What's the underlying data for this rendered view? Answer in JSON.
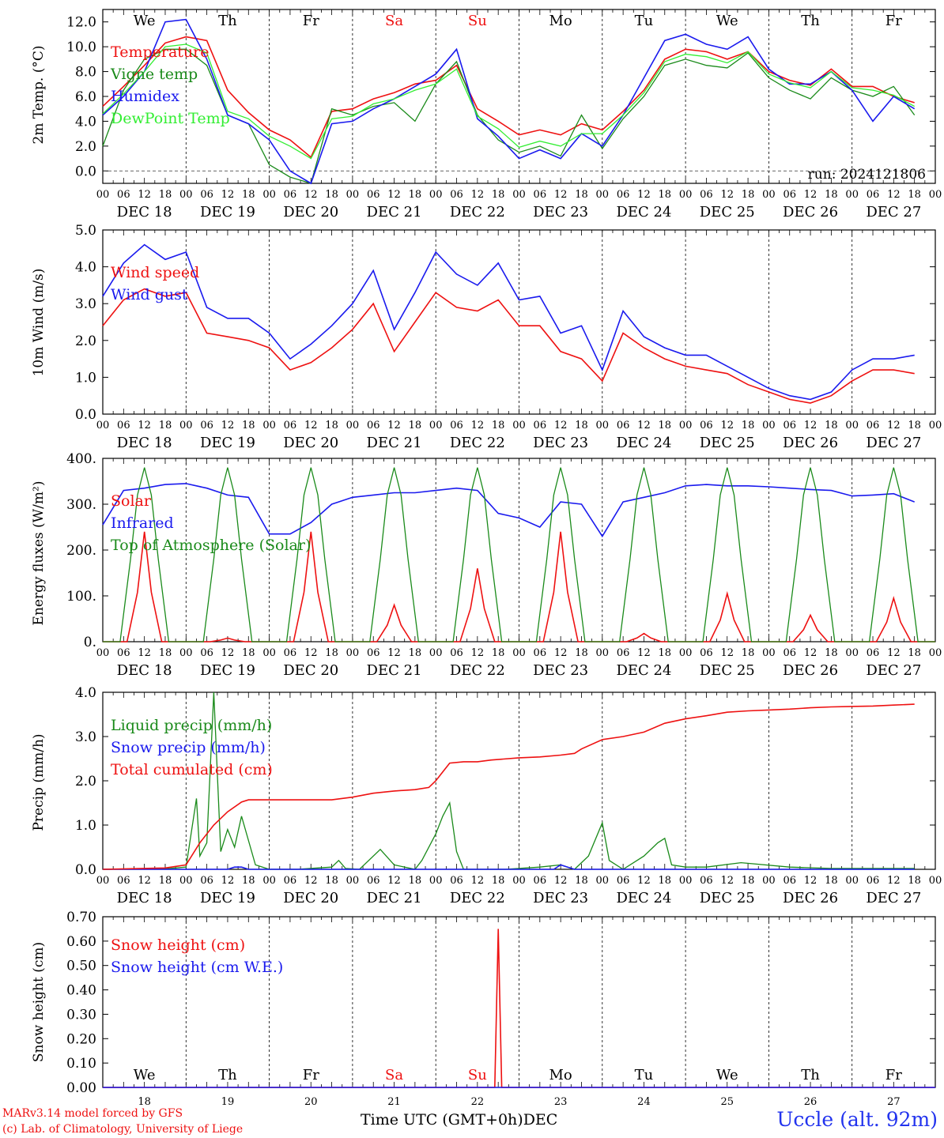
{
  "colors": {
    "red": "#ee1111",
    "green": "#1a8a1a",
    "lightgreen": "#33ee33",
    "blue": "#1a1aee",
    "weekend": "#ee1111",
    "axis": "#000000"
  },
  "days": {
    "weekday_labels": [
      "We",
      "Th",
      "Fr",
      "Sa",
      "Su",
      "Mo",
      "Tu",
      "We",
      "Th",
      "Fr"
    ],
    "weekend_flags": [
      false,
      false,
      false,
      true,
      true,
      false,
      false,
      false,
      false,
      false
    ],
    "date_labels": [
      "DEC 18",
      "DEC 19",
      "DEC 20",
      "DEC 21",
      "DEC 22",
      "DEC 23",
      "DEC 24",
      "DEC 25",
      "DEC 26",
      "DEC 27"
    ],
    "day_numbers": [
      "18",
      "19",
      "20",
      "21",
      "22",
      "23",
      "24",
      "25",
      "26",
      "27"
    ],
    "hour_ticks": [
      "00",
      "06",
      "12",
      "18"
    ],
    "final_hour_tick": "00"
  },
  "footer": {
    "model_line": "MARv3.14 model forced by GFS",
    "copyright_line": "(c) Lab. of Climatology, University of Liege",
    "x_axis_title": "Time UTC (GMT+0h)",
    "x_axis_month": "DEC",
    "station": "Uccle (alt. 92m)"
  },
  "chart_data": [
    {
      "id": "temperature",
      "type": "line",
      "ylabel": "2m Temp. (°C)",
      "ylim": [
        -1,
        13
      ],
      "yticks": [
        "12.0",
        "10.0",
        "8.0",
        "6.0",
        "4.0",
        "2.0",
        "0.0"
      ],
      "ytick_values": [
        12,
        10,
        8,
        6,
        4,
        2,
        0
      ],
      "zero_line": true,
      "annotation": "run: 2024121806",
      "x_unit": "hours since Dec 18 00 UTC",
      "series": [
        {
          "name": "Temperature",
          "color": "red",
          "x": [
            0,
            6,
            12,
            18,
            24,
            30,
            36,
            42,
            48,
            54,
            60,
            66,
            72,
            78,
            84,
            90,
            96,
            102,
            108,
            114,
            120,
            126,
            132,
            138,
            144,
            150,
            156,
            162,
            168,
            174,
            180,
            186,
            192,
            198,
            204,
            210,
            216,
            222,
            228,
            234
          ],
          "y": [
            5.2,
            6.8,
            8.5,
            10.3,
            10.8,
            10.5,
            6.5,
            4.7,
            3.3,
            2.5,
            1.1,
            4.8,
            5.0,
            5.8,
            6.3,
            7.0,
            7.3,
            8.5,
            5.0,
            4.0,
            2.9,
            3.3,
            2.9,
            3.8,
            3.3,
            4.8,
            6.5,
            9.0,
            9.8,
            9.6,
            9.0,
            9.6,
            8.0,
            7.3,
            6.9,
            8.2,
            6.8,
            6.8,
            6.0,
            5.5
          ]
        },
        {
          "name": "Vigne temp",
          "color": "green",
          "x": [
            0,
            6,
            12,
            18,
            24,
            30,
            36,
            42,
            48,
            54,
            60,
            66,
            72,
            78,
            84,
            90,
            96,
            102,
            108,
            114,
            120,
            126,
            132,
            138,
            144,
            150,
            156,
            162,
            168,
            174,
            180,
            186,
            192,
            198,
            204,
            210,
            216,
            222,
            228,
            234
          ],
          "y": [
            2.0,
            6.5,
            9.0,
            9.8,
            9.8,
            8.5,
            4.5,
            3.8,
            0.5,
            -0.5,
            -1.0,
            5.0,
            4.5,
            5.2,
            5.5,
            4.0,
            7.0,
            8.8,
            4.5,
            2.5,
            1.5,
            2.0,
            1.2,
            4.5,
            1.8,
            4.2,
            6.0,
            8.5,
            9.0,
            8.5,
            8.3,
            9.5,
            7.5,
            6.5,
            5.8,
            7.5,
            6.5,
            6.0,
            6.8,
            4.5
          ]
        },
        {
          "name": "Humidex",
          "color": "blue",
          "x": [
            0,
            6,
            12,
            18,
            24,
            30,
            36,
            42,
            48,
            54,
            60,
            66,
            72,
            78,
            84,
            90,
            96,
            102,
            108,
            114,
            120,
            126,
            132,
            138,
            144,
            150,
            156,
            162,
            168,
            174,
            180,
            186,
            192,
            198,
            204,
            210,
            216,
            222,
            228,
            234
          ],
          "y": [
            4.5,
            6.0,
            8.0,
            12.0,
            12.2,
            9.0,
            4.5,
            3.8,
            2.5,
            0.0,
            -1.0,
            3.8,
            4.0,
            5.0,
            5.8,
            6.8,
            7.8,
            9.8,
            4.2,
            2.8,
            1.0,
            1.7,
            1.0,
            3.0,
            2.0,
            4.5,
            7.5,
            10.5,
            11.0,
            10.2,
            9.8,
            10.8,
            8.2,
            7.0,
            7.0,
            8.0,
            6.5,
            4.0,
            6.0,
            5.0
          ]
        },
        {
          "name": "DewPoint Temp",
          "color": "lightgreen",
          "x": [
            0,
            6,
            12,
            18,
            24,
            30,
            36,
            42,
            48,
            54,
            60,
            66,
            72,
            78,
            84,
            90,
            96,
            102,
            108,
            114,
            120,
            126,
            132,
            138,
            144,
            150,
            156,
            162,
            168,
            174,
            180,
            186,
            192,
            198,
            204,
            210,
            216,
            222,
            228,
            234
          ],
          "y": [
            4.6,
            6.2,
            8.0,
            10.0,
            10.2,
            9.5,
            4.8,
            4.2,
            2.8,
            2.0,
            1.0,
            4.2,
            4.4,
            5.4,
            5.8,
            6.5,
            7.0,
            8.2,
            4.4,
            3.4,
            1.9,
            2.4,
            2.0,
            3.0,
            3.0,
            4.5,
            6.3,
            8.8,
            9.4,
            9.2,
            8.7,
            9.6,
            7.8,
            7.1,
            6.7,
            8.0,
            6.7,
            6.5,
            6.1,
            5.2
          ]
        }
      ]
    },
    {
      "id": "wind",
      "type": "line",
      "ylabel": "10m Wind (m/s)",
      "ylim": [
        0,
        5
      ],
      "yticks": [
        "5.0",
        "4.0",
        "3.0",
        "2.0",
        "1.0",
        "0.0"
      ],
      "ytick_values": [
        5,
        4,
        3,
        2,
        1,
        0
      ],
      "series": [
        {
          "name": "Wind speed",
          "color": "red",
          "x": [
            0,
            6,
            12,
            18,
            24,
            30,
            36,
            42,
            48,
            54,
            60,
            66,
            72,
            78,
            84,
            90,
            96,
            102,
            108,
            114,
            120,
            126,
            132,
            138,
            144,
            150,
            156,
            162,
            168,
            174,
            180,
            186,
            192,
            198,
            204,
            210,
            216,
            222,
            228,
            234
          ],
          "y": [
            2.4,
            3.1,
            3.4,
            3.2,
            3.3,
            2.2,
            2.1,
            2.0,
            1.8,
            1.2,
            1.4,
            1.8,
            2.3,
            3.0,
            1.7,
            2.5,
            3.3,
            2.9,
            2.8,
            3.1,
            2.4,
            2.4,
            1.7,
            1.5,
            0.9,
            2.2,
            1.8,
            1.5,
            1.3,
            1.2,
            1.1,
            0.8,
            0.6,
            0.4,
            0.3,
            0.5,
            0.9,
            1.2,
            1.2,
            1.1
          ]
        },
        {
          "name": "Wind gust",
          "color": "blue",
          "x": [
            0,
            6,
            12,
            18,
            24,
            30,
            36,
            42,
            48,
            54,
            60,
            66,
            72,
            78,
            84,
            90,
            96,
            102,
            108,
            114,
            120,
            126,
            132,
            138,
            144,
            150,
            156,
            162,
            168,
            174,
            180,
            186,
            192,
            198,
            204,
            210,
            216,
            222,
            228,
            234
          ],
          "y": [
            3.2,
            4.1,
            4.6,
            4.2,
            4.4,
            2.9,
            2.6,
            2.6,
            2.2,
            1.5,
            1.9,
            2.4,
            3.0,
            3.9,
            2.3,
            3.3,
            4.4,
            3.8,
            3.5,
            4.1,
            3.1,
            3.2,
            2.2,
            2.4,
            1.2,
            2.8,
            2.1,
            1.8,
            1.6,
            1.6,
            1.3,
            1.0,
            0.7,
            0.5,
            0.4,
            0.6,
            1.2,
            1.5,
            1.5,
            1.6
          ]
        }
      ]
    },
    {
      "id": "energy",
      "type": "line",
      "ylabel": "Energy fluxes (W/m²)",
      "ylim": [
        0,
        400
      ],
      "yticks": [
        "400.",
        "300.",
        "200.",
        "100.",
        "0."
      ],
      "ytick_values": [
        400,
        300,
        200,
        100,
        0
      ],
      "series": [
        {
          "name": "Solar",
          "color": "red",
          "kind": "daily_peaks",
          "peaks": [
            240,
            8,
            240,
            80,
            160,
            240,
            18,
            105,
            58,
            95
          ]
        },
        {
          "name": "Infrared",
          "color": "blue",
          "x": [
            0,
            6,
            12,
            18,
            24,
            30,
            36,
            42,
            48,
            54,
            60,
            66,
            72,
            78,
            84,
            90,
            96,
            102,
            108,
            114,
            120,
            126,
            132,
            138,
            144,
            150,
            156,
            162,
            168,
            174,
            180,
            186,
            192,
            198,
            204,
            210,
            216,
            222,
            228,
            234
          ],
          "y": [
            255,
            330,
            335,
            343,
            345,
            335,
            320,
            315,
            235,
            235,
            260,
            300,
            315,
            320,
            325,
            325,
            330,
            335,
            330,
            280,
            270,
            250,
            305,
            300,
            230,
            305,
            315,
            325,
            340,
            343,
            340,
            340,
            338,
            335,
            332,
            330,
            318,
            320,
            323,
            305
          ]
        },
        {
          "name": "Top of Atmosphere (Solar)",
          "color": "green",
          "kind": "daily_peaks",
          "peaks": [
            380,
            380,
            380,
            380,
            380,
            380,
            380,
            380,
            380,
            380
          ]
        }
      ]
    },
    {
      "id": "precip",
      "type": "line",
      "ylabel": "Precip (mm/h)",
      "ylim": [
        0,
        4
      ],
      "yticks": [
        "4.0",
        "3.0",
        "2.0",
        "1.0",
        "0.0"
      ],
      "ytick_values": [
        4,
        3,
        2,
        1,
        0
      ],
      "series": [
        {
          "name": "Liquid precip (mm/h)",
          "color": "green",
          "x": [
            0,
            18,
            24,
            27,
            28,
            30,
            32,
            34,
            36,
            38,
            40,
            44,
            48,
            56,
            66,
            68,
            70,
            74,
            80,
            84,
            90,
            92,
            96,
            98,
            100,
            102,
            104,
            110,
            116,
            126,
            132,
            136,
            140,
            144,
            146,
            150,
            156,
            160,
            162,
            164,
            168,
            174,
            184,
            198,
            210,
            220,
            234
          ],
          "y": [
            0,
            0.01,
            0.05,
            1.6,
            0.3,
            0.6,
            4.0,
            0.4,
            0.9,
            0.5,
            1.2,
            0.1,
            0,
            0,
            0.05,
            0.2,
            0.02,
            0,
            0.45,
            0.1,
            0,
            0.2,
            0.8,
            1.2,
            1.5,
            0.4,
            0,
            0,
            0,
            0.05,
            0.1,
            0,
            0.3,
            1.05,
            0.2,
            0,
            0.3,
            0.6,
            0.7,
            0.1,
            0.05,
            0.05,
            0.15,
            0.05,
            0.02,
            0.02,
            0.02
          ]
        },
        {
          "name": "Snow precip (mm/h)",
          "color": "blue",
          "x": [
            0,
            36,
            38,
            40,
            42,
            130,
            132,
            134,
            136,
            234
          ],
          "y": [
            0,
            0,
            0.05,
            0.05,
            0,
            0,
            0.1,
            0.05,
            0,
            0
          ]
        },
        {
          "name": "Total cumulated (cm)",
          "color": "red",
          "x": [
            0,
            18,
            24,
            28,
            32,
            36,
            40,
            42,
            48,
            54,
            60,
            66,
            72,
            78,
            84,
            90,
            94,
            96,
            98,
            100,
            104,
            108,
            112,
            120,
            126,
            132,
            136,
            138,
            144,
            150,
            156,
            162,
            168,
            174,
            180,
            186,
            192,
            198,
            204,
            210,
            216,
            222,
            228,
            234
          ],
          "y": [
            0,
            0.03,
            0.1,
            0.6,
            1.0,
            1.3,
            1.52,
            1.57,
            1.57,
            1.57,
            1.57,
            1.57,
            1.63,
            1.72,
            1.77,
            1.8,
            1.85,
            2.0,
            2.2,
            2.4,
            2.43,
            2.43,
            2.47,
            2.52,
            2.54,
            2.58,
            2.62,
            2.72,
            2.93,
            3.0,
            3.1,
            3.3,
            3.4,
            3.47,
            3.55,
            3.58,
            3.6,
            3.62,
            3.65,
            3.67,
            3.68,
            3.69,
            3.71,
            3.73
          ]
        }
      ]
    },
    {
      "id": "snow",
      "type": "line",
      "ylabel": "Snow height (cm)",
      "ylim": [
        0,
        0.7
      ],
      "yticks": [
        "0.70",
        "0.60",
        "0.50",
        "0.40",
        "0.30",
        "0.20",
        "0.10",
        "0.00"
      ],
      "ytick_values": [
        0.7,
        0.6,
        0.5,
        0.4,
        0.3,
        0.2,
        0.1,
        0.0
      ],
      "series": [
        {
          "name": "Snow height (cm)",
          "color": "red",
          "x": [
            0,
            113,
            114,
            115,
            240
          ],
          "y": [
            0,
            0,
            0.65,
            0,
            0
          ]
        },
        {
          "name": "Snow height (cm W.E.)",
          "color": "blue",
          "x": [
            0,
            240
          ],
          "y": [
            0,
            0
          ]
        }
      ]
    }
  ]
}
